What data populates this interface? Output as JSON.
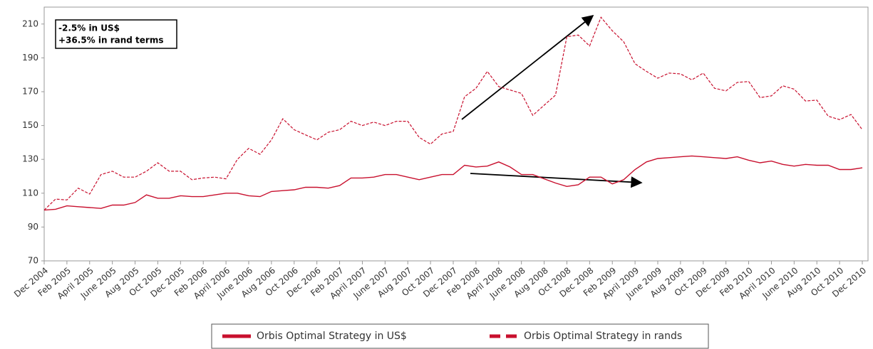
{
  "chart_data": {
    "type": "line",
    "categories": [
      "Dec 2004",
      null,
      "Feb 2005",
      null,
      "April 2005",
      null,
      "June 2005",
      null,
      "Aug 2005",
      null,
      "Oct 2005",
      null,
      "Dec 2005",
      null,
      "Feb 2006",
      null,
      "April 2006",
      null,
      "June 2006",
      null,
      "Aug 2006",
      null,
      "Oct 2006",
      null,
      "Dec 2006",
      null,
      "Feb 2007",
      null,
      "April 2007",
      null,
      "June 2007",
      null,
      "Aug 2007",
      null,
      "Oct 2007",
      null,
      "Dec 2007",
      null,
      "Feb 2008",
      null,
      "April 2008",
      null,
      "June 2008",
      null,
      "Aug 2008",
      null,
      "Oct 2008",
      null,
      "Dec 2008",
      null,
      "Feb 2009",
      null,
      "April 2009",
      null,
      "June 2009",
      null,
      "Aug 2009",
      null,
      "Oct 2009",
      null,
      "Dec 2009",
      null,
      "Feb 2010",
      null,
      "April 2010",
      null,
      "June 2010",
      null,
      "Aug 2010",
      null,
      "Oct 2010",
      null,
      "Dec 2010"
    ],
    "series": [
      {
        "name": "Orbis Optimal Strategy in US$",
        "color": "#c8102e",
        "dash": false,
        "values": [
          100,
          100.5,
          102.5,
          102,
          101.5,
          101,
          103,
          103,
          104.5,
          109,
          107,
          107,
          108.5,
          108,
          108,
          109,
          110,
          110,
          108.5,
          108,
          111,
          111.5,
          112,
          113.5,
          113.5,
          113,
          114.5,
          119,
          119,
          119.5,
          121,
          121,
          119.5,
          118,
          119.5,
          121,
          121,
          126.5,
          125.5,
          126,
          128.5,
          125.5,
          121,
          121,
          118.5,
          116,
          114,
          115,
          119.5,
          119.5,
          115.5,
          118,
          124,
          128.5,
          130.5,
          131,
          131.5,
          132,
          131.5,
          131,
          130.5,
          131.5,
          129.5,
          128,
          129,
          127,
          126,
          127,
          126.5,
          126.5,
          124,
          124,
          125
        ]
      },
      {
        "name": "Orbis Optimal Strategy in rands",
        "color": "#c8102e",
        "dash": true,
        "values": [
          100,
          106.5,
          106,
          113,
          109.5,
          121,
          123,
          119.5,
          119.5,
          123,
          128,
          123,
          123,
          118,
          119,
          119.5,
          118.5,
          130,
          136.5,
          133,
          141.5,
          154,
          147.5,
          144.5,
          141.5,
          146,
          147.5,
          152.5,
          150,
          152,
          150,
          152.5,
          152.5,
          143,
          139,
          145,
          146.5,
          167,
          172,
          182,
          173,
          171,
          169,
          156,
          162,
          168,
          202.5,
          203.5,
          197,
          214,
          206,
          199.5,
          186.5,
          182,
          178,
          181,
          180.5,
          177,
          181,
          172,
          170.5,
          175.5,
          176,
          166.5,
          167.5,
          173.5,
          171.5,
          164.5,
          165,
          155.5,
          153.5,
          156.5,
          147.5
        ]
      }
    ],
    "annotations": [
      "-2.5% in US$",
      "+36.5% in rand terms"
    ],
    "ylim": [
      70,
      220
    ],
    "yticks": [
      70,
      90,
      110,
      130,
      150,
      170,
      190,
      210
    ],
    "grid": false
  }
}
